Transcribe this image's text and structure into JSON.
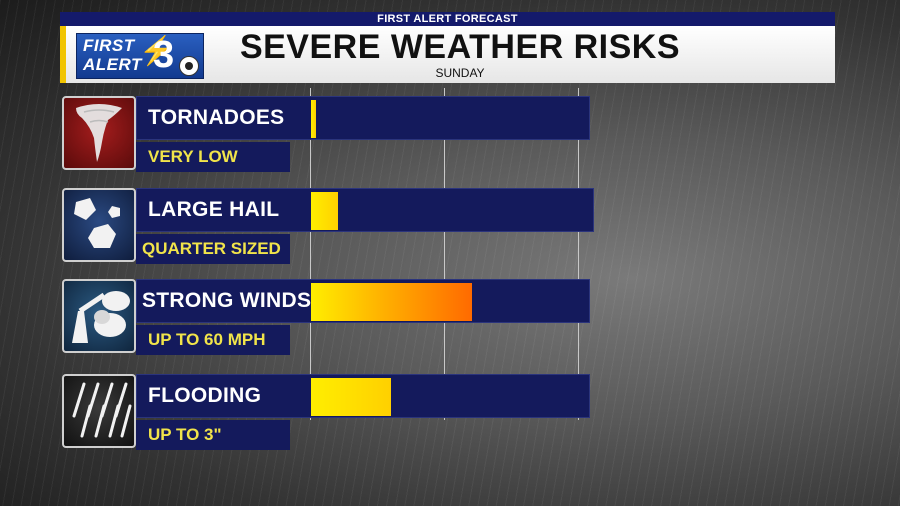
{
  "header": {
    "top_label": "FIRST ALERT FORECAST",
    "title": "SEVERE WEATHER RISKS",
    "subtitle": "SUNDAY",
    "logo": {
      "line1": "FIRST",
      "line2": "ALERT",
      "number": "3"
    }
  },
  "risks": [
    {
      "label": "TORNADOES",
      "level": "VERY LOW",
      "icon": "tornado-icon",
      "fill_fraction": 0.02
    },
    {
      "label": "LARGE HAIL",
      "level": "QUARTER SIZED",
      "icon": "hail-icon",
      "fill_fraction": 0.1
    },
    {
      "label": "STRONG WINDS",
      "level": "UP TO 60 MPH",
      "icon": "wind-damage-icon",
      "fill_fraction": 0.6
    },
    {
      "label": "FLOODING",
      "level": "UP TO 3\"",
      "icon": "rain-icon",
      "fill_fraction": 0.3
    }
  ],
  "colors": {
    "bar_background": "#141a5c",
    "level_text": "#f1e44a",
    "fill_yellow": "#ffee00",
    "fill_orange": "#ff6a00",
    "logo_accent": "#f1c400"
  }
}
